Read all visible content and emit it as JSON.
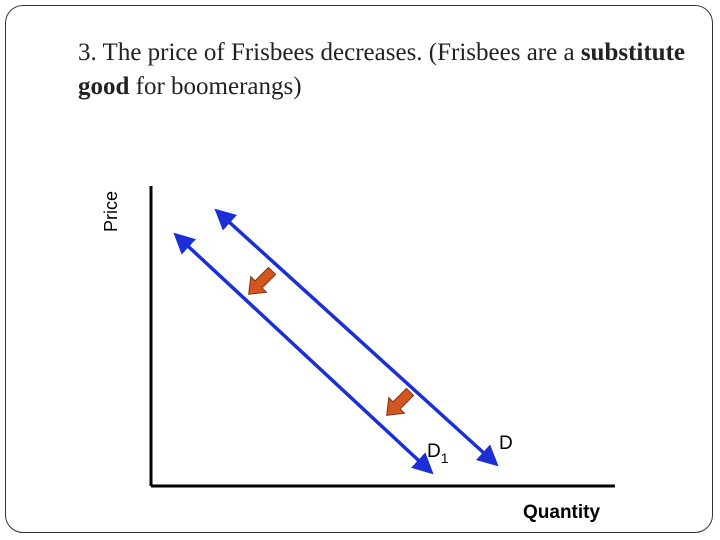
{
  "title": {
    "prefix": "3. The price of Frisbees decreases. (Frisbees are a ",
    "bold": "substitute good",
    "suffix": " for boomerangs)"
  },
  "axes": {
    "y_label": "Price",
    "x_label": "Quantity"
  },
  "curves": {
    "original_label": "D",
    "new_label_main": "D",
    "new_label_sub": "1"
  },
  "colors": {
    "curve": "#1a2fd6",
    "shift_arrow": "#d2561f",
    "axis": "#000000"
  }
}
